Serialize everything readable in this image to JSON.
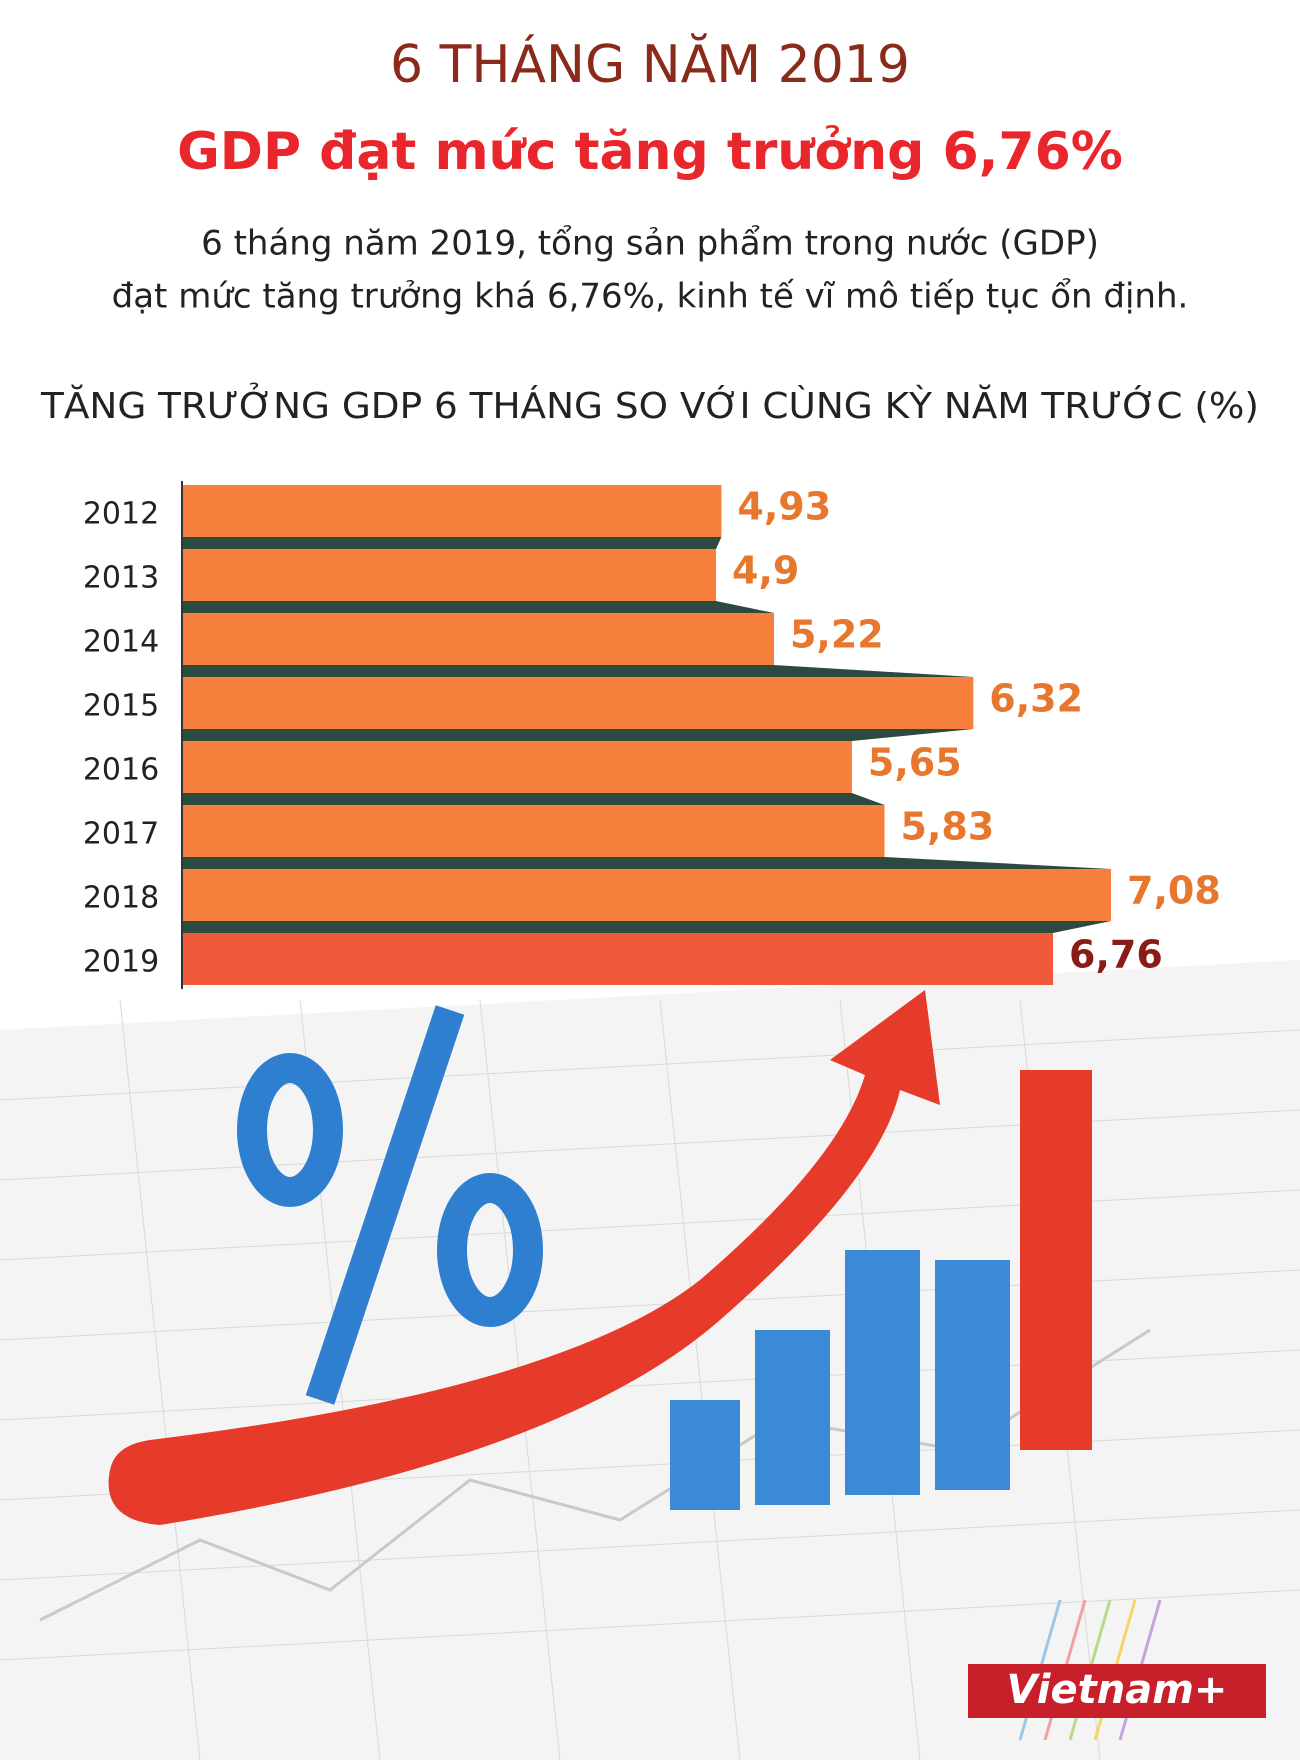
{
  "header": {
    "kicker": "6 THÁNG NĂM 2019",
    "title": "GDP đạt mức tăng trưởng 6,76%",
    "description": [
      "6 tháng năm 2019, tổng sản phẩm trong nước (GDP)",
      "đạt mức tăng trưởng khá 6,76%, kinh tế vĩ mô tiếp tục ổn định."
    ]
  },
  "chart_data": {
    "type": "bar",
    "orientation": "horizontal",
    "title": "TĂNG TRƯỞNG GDP 6 THÁNG SO VỚI CÙNG KỲ NĂM TRƯỚC (%)",
    "categories": [
      "2012",
      "2013",
      "2014",
      "2015",
      "2016",
      "2017",
      "2018",
      "2019"
    ],
    "values": [
      4.93,
      4.9,
      5.22,
      6.32,
      5.65,
      5.83,
      7.08,
      6.76
    ],
    "value_labels": [
      "4,93",
      "4,9",
      "5,22",
      "6,32",
      "5,65",
      "5,83",
      "7,08",
      "6,76"
    ],
    "colors": [
      "#f57f3b",
      "#f57f3b",
      "#f57f3b",
      "#f57f3b",
      "#f57f3b",
      "#f57f3b",
      "#f57f3b",
      "#f05a3a"
    ],
    "label_colors": [
      "#e8772e",
      "#e8772e",
      "#e8772e",
      "#e8772e",
      "#e8772e",
      "#e8772e",
      "#e8772e",
      "#8a1c17"
    ],
    "shadow_color": "#2d4a3e"
  },
  "brand": "Vietnam+"
}
